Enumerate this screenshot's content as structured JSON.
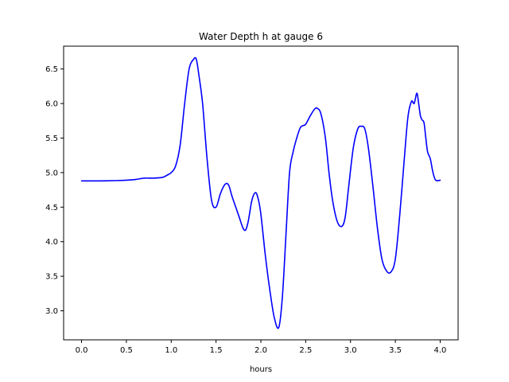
{
  "chart_data": {
    "type": "line",
    "title": "Water Depth h at gauge 6",
    "xlabel": "hours",
    "ylabel": "",
    "xlim": [
      -0.2,
      4.2
    ],
    "ylim": [
      2.58,
      6.83
    ],
    "x_ticks": [
      0.0,
      0.5,
      1.0,
      1.5,
      2.0,
      2.5,
      3.0,
      3.5,
      4.0
    ],
    "x_tick_labels": [
      "0.0",
      "0.5",
      "1.0",
      "1.5",
      "2.0",
      "2.5",
      "3.0",
      "3.5",
      "4.0"
    ],
    "y_ticks": [
      3.0,
      3.5,
      4.0,
      4.5,
      5.0,
      5.5,
      6.0,
      6.5
    ],
    "y_tick_labels": [
      "3.0",
      "3.5",
      "4.0",
      "4.5",
      "5.0",
      "5.5",
      "6.0",
      "6.5"
    ],
    "grid": false,
    "series": [
      {
        "name": "",
        "color": "#0000ff",
        "x": [
          0.0,
          0.2,
          0.4,
          0.5,
          0.6,
          0.7,
          0.8,
          0.9,
          0.95,
          1.0,
          1.05,
          1.1,
          1.15,
          1.2,
          1.25,
          1.28,
          1.31,
          1.35,
          1.4,
          1.45,
          1.5,
          1.55,
          1.6,
          1.64,
          1.68,
          1.72,
          1.76,
          1.8,
          1.83,
          1.86,
          1.9,
          1.94,
          1.97,
          2.0,
          2.05,
          2.1,
          2.15,
          2.2,
          2.24,
          2.28,
          2.32,
          2.36,
          2.4,
          2.44,
          2.47,
          2.5,
          2.55,
          2.6,
          2.63,
          2.67,
          2.72,
          2.76,
          2.8,
          2.85,
          2.9,
          2.94,
          2.98,
          3.03,
          3.08,
          3.12,
          3.16,
          3.2,
          3.25,
          3.3,
          3.35,
          3.4,
          3.45,
          3.5,
          3.55,
          3.6,
          3.64,
          3.68,
          3.71,
          3.74,
          3.76,
          3.78,
          3.8,
          3.82,
          3.84,
          3.86,
          3.89,
          3.92,
          3.95,
          4.0
        ],
        "y": [
          4.88,
          4.88,
          4.885,
          4.89,
          4.9,
          4.92,
          4.92,
          4.93,
          4.96,
          5.0,
          5.1,
          5.4,
          6.0,
          6.5,
          6.64,
          6.64,
          6.4,
          6.0,
          5.2,
          4.6,
          4.5,
          4.7,
          4.83,
          4.82,
          4.65,
          4.5,
          4.35,
          4.2,
          4.17,
          4.3,
          4.6,
          4.71,
          4.62,
          4.4,
          3.8,
          3.3,
          2.9,
          2.76,
          3.2,
          4.1,
          5.0,
          5.3,
          5.5,
          5.65,
          5.68,
          5.7,
          5.82,
          5.92,
          5.93,
          5.85,
          5.5,
          5.0,
          4.6,
          4.3,
          4.22,
          4.35,
          4.8,
          5.35,
          5.63,
          5.67,
          5.63,
          5.35,
          4.8,
          4.2,
          3.75,
          3.58,
          3.56,
          3.75,
          4.4,
          5.2,
          5.8,
          6.03,
          6.0,
          6.15,
          6.0,
          5.82,
          5.76,
          5.72,
          5.5,
          5.3,
          5.2,
          5.0,
          4.89,
          4.89
        ]
      }
    ]
  }
}
